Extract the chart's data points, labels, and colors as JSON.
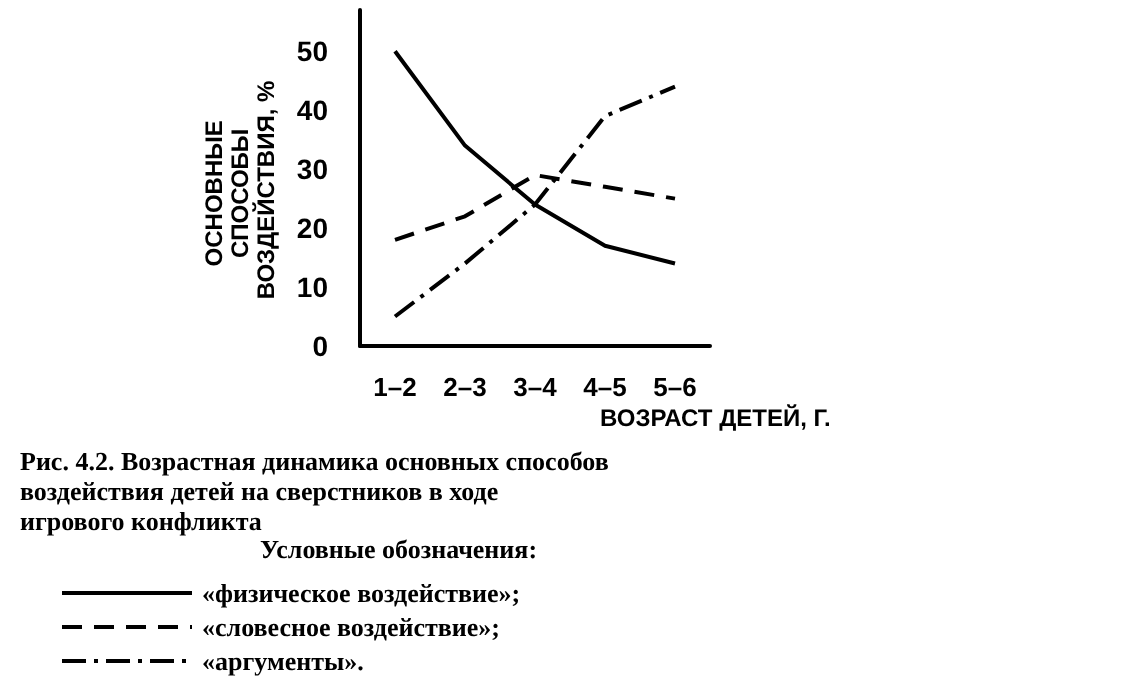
{
  "chart_data": {
    "type": "line",
    "title": "Рис. 4.2. Возрастная динамика основных способов воздействия детей на сверстников в ходе игрового конфликта",
    "xlabel": "ВОЗРАСТ ДЕТЕЙ, Г.",
    "ylabel": "ОСНОВНЫЕ СПОСОБЫ ВОЗДЕЙСТВИЯ, %",
    "legend_title": "Условные обозначения:",
    "categories": [
      "1–2",
      "2–3",
      "3–4",
      "4–5",
      "5–6"
    ],
    "series": [
      {
        "name": "«физическое воздействие»;",
        "color": "#000000",
        "line_style": "solid",
        "values": [
          50,
          34,
          24,
          17,
          14
        ]
      },
      {
        "name": "«словесное воздействие»;",
        "color": "#000000",
        "line_style": "dashed",
        "values": [
          18,
          22,
          29,
          27,
          25
        ]
      },
      {
        "name": "«аргументы».",
        "color": "#000000",
        "line_style": "dashdot",
        "values": [
          5,
          14,
          24,
          39,
          44
        ]
      }
    ],
    "ylim": [
      0,
      57
    ],
    "yticks": [
      0,
      10,
      20,
      30,
      40,
      50
    ],
    "grid": false,
    "legend": "bottom left",
    "marker": "none"
  }
}
